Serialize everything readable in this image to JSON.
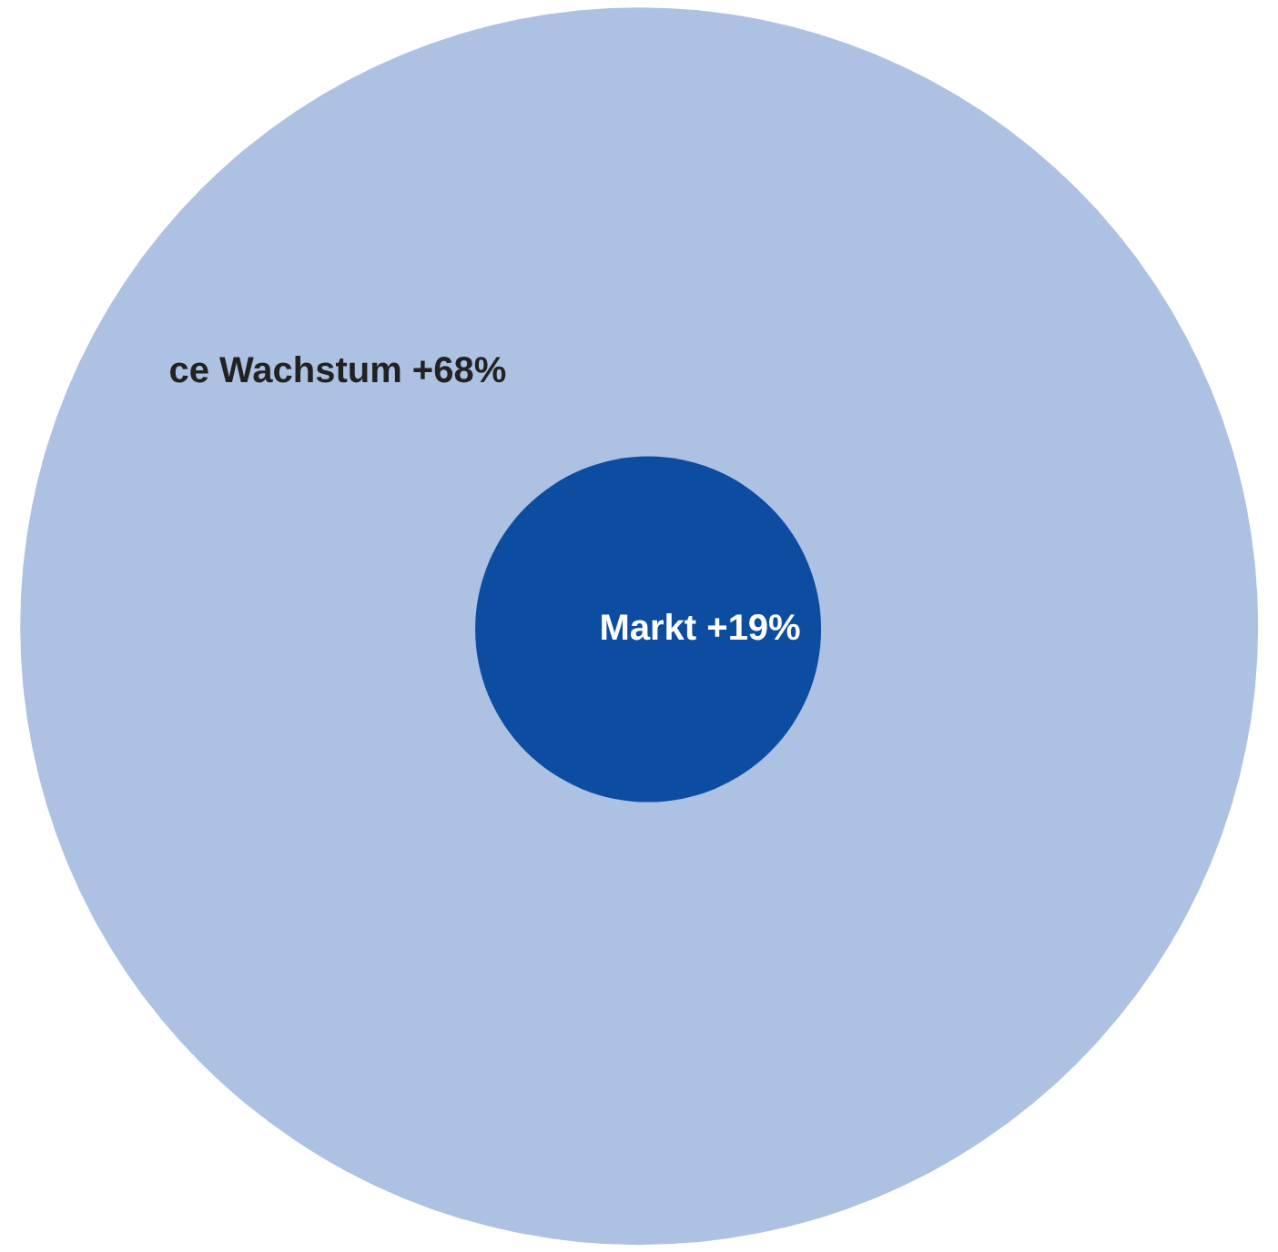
{
  "chart_data": {
    "type": "other",
    "categories": [
      "ce Wachstum",
      "Markt"
    ],
    "values": [
      68,
      19
    ],
    "value_labels": [
      "+68%",
      "+19%"
    ],
    "colors": [
      "#adc1e3",
      "#0c4da2"
    ]
  }
}
